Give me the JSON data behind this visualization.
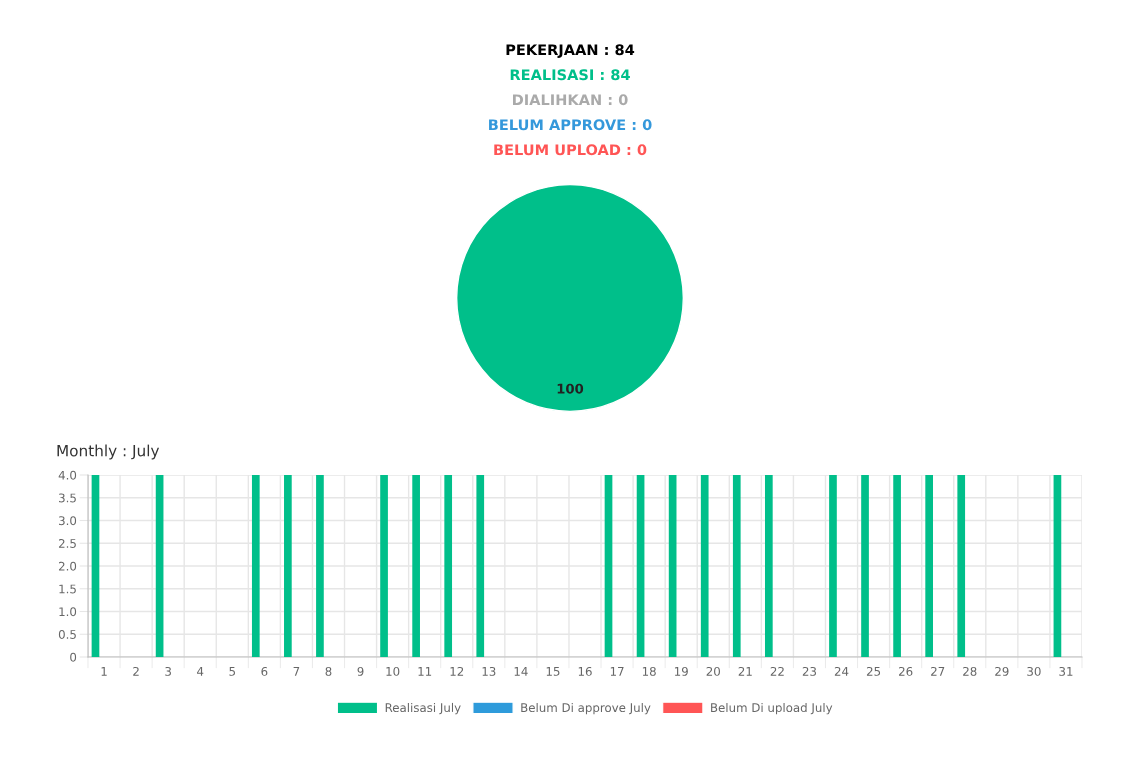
{
  "chart_data": [
    {
      "type": "pie",
      "title": "PEKERJAAN : 84",
      "annotations": [
        "REALISASI : 84",
        "DIALIHKAN : 0",
        "BELUM APPROVE : 0",
        "BELUM UPLOAD : 0"
      ],
      "categories": [
        null
      ],
      "values": [
        100
      ],
      "colors": [
        "#00bf8a"
      ],
      "data_labels": true
    },
    {
      "type": "bar",
      "title": "Monthly : July",
      "categories": [
        "1",
        "2",
        "3",
        "4",
        "5",
        "6",
        "7",
        "8",
        "9",
        "10",
        "11",
        "12",
        "13",
        "14",
        "15",
        "16",
        "17",
        "18",
        "19",
        "20",
        "21",
        "22",
        "23",
        "24",
        "25",
        "26",
        "27",
        "28",
        "29",
        "30",
        "31"
      ],
      "series": [
        {
          "name": "Realisasi July",
          "color": "#00bf8a",
          "values": [
            4,
            0,
            4,
            0,
            0,
            4,
            4,
            4,
            0,
            4,
            4,
            4,
            4,
            0,
            0,
            0,
            4,
            4,
            4,
            4,
            4,
            4,
            0,
            4,
            4,
            4,
            4,
            4,
            0,
            0,
            4
          ]
        },
        {
          "name": "Belum Di approve July",
          "color": "#2e9bdb",
          "values": [
            0,
            0,
            0,
            0,
            0,
            0,
            0,
            0,
            0,
            0,
            0,
            0,
            0,
            0,
            0,
            0,
            0,
            0,
            0,
            0,
            0,
            0,
            0,
            0,
            0,
            0,
            0,
            0,
            0,
            0,
            0
          ]
        },
        {
          "name": "Belum Di upload July",
          "color": "#ff5555",
          "values": [
            0,
            0,
            0,
            0,
            0,
            0,
            0,
            0,
            0,
            0,
            0,
            0,
            0,
            0,
            0,
            0,
            0,
            0,
            0,
            0,
            0,
            0,
            0,
            0,
            0,
            0,
            0,
            0,
            0,
            0,
            0
          ]
        }
      ],
      "ylim": [
        0,
        4
      ],
      "yticks": [
        0,
        0.5,
        {
          "value": 1,
          "label": "1.0"
        },
        1.5,
        {
          "value": 2,
          "label": "2.0"
        },
        2.5,
        {
          "value": 3,
          "label": "3.0"
        },
        3.5,
        {
          "value": 4,
          "label": "4.0"
        }
      ],
      "grid": true,
      "legend": "bottom"
    }
  ]
}
